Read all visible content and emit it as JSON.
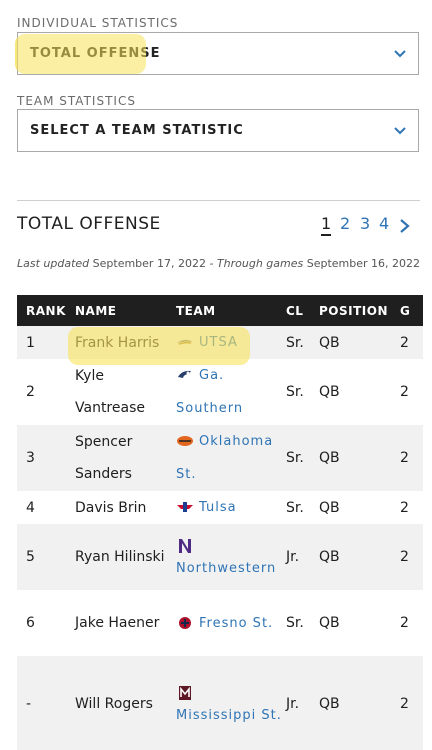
{
  "individual": {
    "label": "INDIVIDUAL STATISTICS",
    "selected": "TOTAL OFFENSE"
  },
  "team_stats": {
    "label": "TEAM STATISTICS",
    "selected": "SELECT A TEAM STATISTIC"
  },
  "heading": {
    "title": "TOTAL OFFENSE",
    "pages": [
      "1",
      "2",
      "3",
      "4"
    ],
    "current_page": "1"
  },
  "updated": {
    "prefix": "Last updated",
    "date": "September 17, 2022",
    "middle": "- Through games",
    "through": "September 16, 2022"
  },
  "table": {
    "headers": [
      "RANK",
      "NAME",
      "TEAM",
      "CL",
      "POSITION",
      "G"
    ],
    "rows": [
      {
        "rank": "1",
        "name": "Frank Harris",
        "team": "UTSA",
        "cl": "Sr.",
        "pos": "QB",
        "g": "2"
      },
      {
        "rank": "2",
        "name": "Kyle Vantrease",
        "team": "Ga. Southern",
        "cl": "Sr.",
        "pos": "QB",
        "g": "2"
      },
      {
        "rank": "3",
        "name": "Spencer Sanders",
        "team": "Oklahoma St.",
        "cl": "Sr.",
        "pos": "QB",
        "g": "2"
      },
      {
        "rank": "4",
        "name": "Davis Brin",
        "team": "Tulsa",
        "cl": "Sr.",
        "pos": "QB",
        "g": "2"
      },
      {
        "rank": "5",
        "name": "Ryan Hilinski",
        "team": "Northwestern",
        "cl": "Jr.",
        "pos": "QB",
        "g": "2"
      },
      {
        "rank": "6",
        "name": "Jake Haener",
        "team": "Fresno St.",
        "cl": "Sr.",
        "pos": "QB",
        "g": "2"
      },
      {
        "rank": "-",
        "name": "Will Rogers",
        "team": "Mississippi St.",
        "cl": "Jr.",
        "pos": "QB",
        "g": "2"
      }
    ]
  },
  "colors": {
    "link": "#2f74b5",
    "highlight": "#f8e25a",
    "header_bg": "#1f1f1f"
  }
}
